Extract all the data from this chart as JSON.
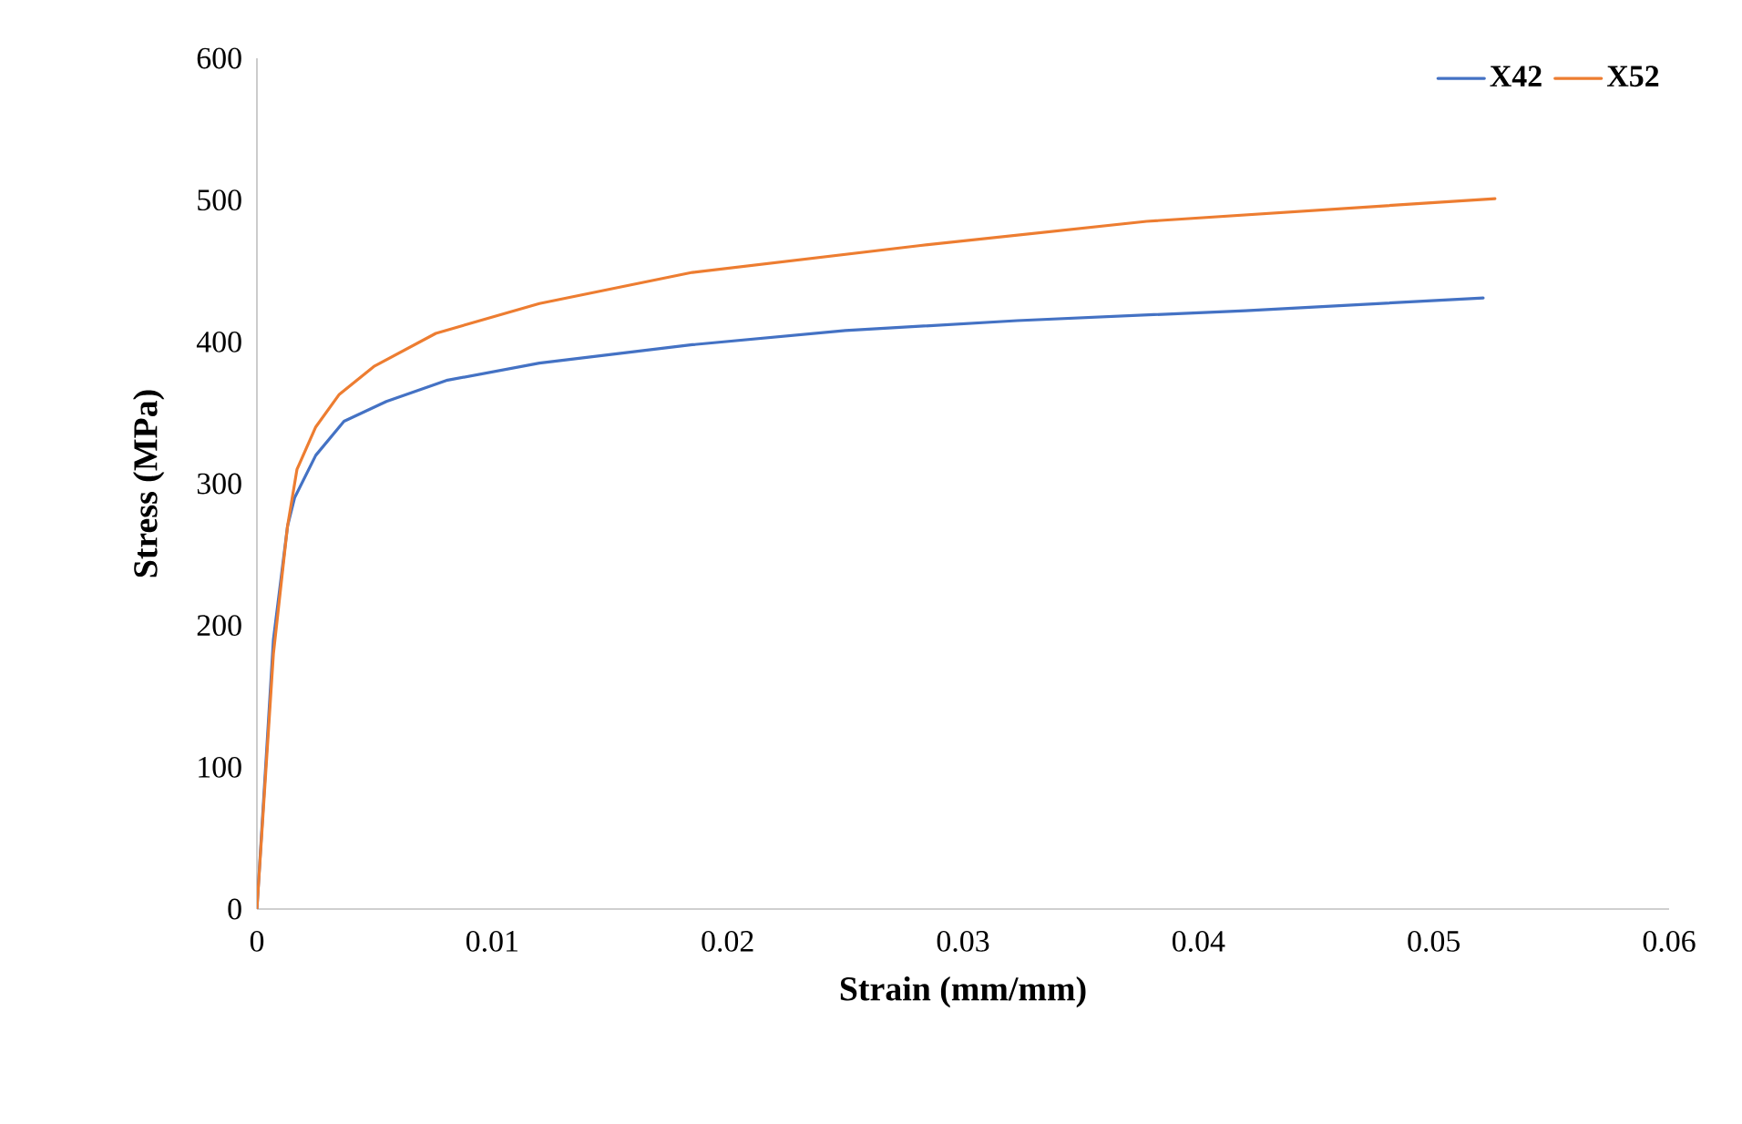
{
  "chart_data": {
    "type": "line",
    "xlabel": "Strain (mm/mm)",
    "ylabel": "Stress (MPa)",
    "xlim": [
      0,
      0.06
    ],
    "xticks": [
      0,
      0.01,
      0.02,
      0.03,
      0.04,
      0.05,
      0.06
    ],
    "ylim": [
      0,
      600
    ],
    "yticks": [
      0,
      100,
      200,
      300,
      400,
      500,
      600
    ],
    "grid": false,
    "legend": "top right",
    "marker": "none",
    "line_style": "solid",
    "series": [
      {
        "name": "X42",
        "color": "#4472c4",
        "x": [
          0,
          0.0007,
          0.0013,
          0.0016,
          0.0025,
          0.0037,
          0.0055,
          0.0081,
          0.012,
          0.0185,
          0.025,
          0.0323,
          0.042,
          0.0521
        ],
        "values": [
          0,
          190,
          270,
          290,
          320,
          344,
          358,
          373,
          385,
          398,
          408,
          415,
          422,
          431
        ]
      },
      {
        "name": "X52",
        "color": "#ed7d31",
        "x": [
          0,
          0.0007,
          0.0013,
          0.0017,
          0.0025,
          0.0035,
          0.005,
          0.0076,
          0.012,
          0.0185,
          0.0282,
          0.0378,
          0.0526
        ],
        "values": [
          0,
          180,
          270,
          310,
          340,
          363,
          383,
          406,
          427,
          449,
          468,
          485,
          501
        ]
      }
    ]
  }
}
